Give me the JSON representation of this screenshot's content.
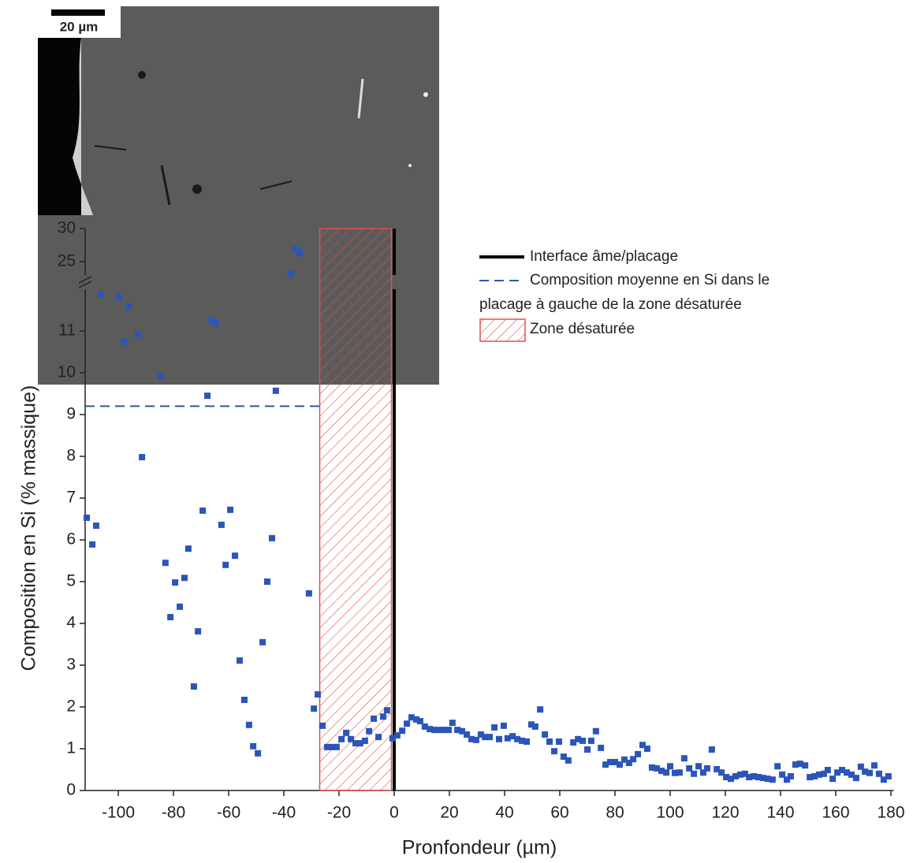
{
  "chart_data": {
    "type": "scatter",
    "x_label": "Pronfondeur (µm)",
    "y_label": "Composition en Si (% massique)",
    "xlim": [
      -112,
      181
    ],
    "xticks": [
      -100,
      -80,
      -60,
      -40,
      -20,
      0,
      20,
      40,
      60,
      80,
      100,
      120,
      140,
      160,
      180
    ],
    "ylim": [
      0,
      30
    ],
    "ybreak": [
      12,
      23
    ],
    "yticks": [
      0,
      1,
      2,
      3,
      4,
      5,
      6,
      7,
      8,
      9,
      10,
      11,
      25,
      30
    ],
    "image_scale_bar": "20 µm",
    "series": [
      {
        "color": "#2b55b8",
        "x": [
          -111.4,
          -109.4,
          -108,
          -106.3,
          -99.7,
          -96.3,
          -98,
          -92.9,
          -91.4,
          -84.6,
          -82.9,
          -81.1,
          -79.4,
          -77.7,
          -76,
          -74.6,
          -72.6,
          -71.1,
          -69.4,
          -67.7,
          -66.3,
          -64.6,
          -62.6,
          -61.1,
          -59.4,
          -57.7,
          -56,
          -54.3,
          -52.6,
          -51.1,
          -49.4,
          -47.7,
          -46,
          -44.3,
          -42.9,
          -37.4,
          -35.7,
          -34.3,
          -30.9,
          -29.1,
          -27.7,
          -26,
          -24.3,
          -22.6,
          -20.9,
          -19.1,
          -17.4,
          -15.7,
          -14,
          -12.3,
          -10.6,
          -9.1,
          -7.4,
          -5.7,
          -4,
          -2.6,
          -0.6,
          1.1,
          2.9,
          4.6,
          6.3,
          8,
          9.4,
          11.1,
          12.9,
          14.6,
          16.3,
          18,
          19.7,
          21.1,
          22.9,
          24.6,
          26.3,
          28,
          29.7,
          31.4,
          32.9,
          34.6,
          36.3,
          38,
          39.7,
          41.1,
          42.9,
          44.6,
          46.3,
          48,
          49.7,
          51.1,
          52.9,
          54.6,
          56.3,
          58,
          59.7,
          61.4,
          63.1,
          64.9,
          66.6,
          68.3,
          70,
          71.4,
          73.1,
          74.9,
          76.6,
          78.3,
          80,
          81.7,
          83.4,
          85.1,
          86.6,
          88.3,
          90,
          91.7,
          93.4,
          95.1,
          96.9,
          98.6,
          100,
          101.7,
          103.4,
          105.1,
          106.9,
          108.6,
          110.3,
          112,
          113.4,
          115.1,
          116.9,
          118.6,
          120.3,
          122,
          123.7,
          125.4,
          127.1,
          128.6,
          130.3,
          132,
          133.7,
          135.4,
          137.1,
          138.9,
          140.6,
          142.3,
          143.7,
          145.4,
          147.1,
          148.9,
          150.6,
          152.3,
          154,
          155.7,
          157.1,
          158.9,
          160.6,
          162.3,
          164,
          165.7,
          167.4,
          169.1,
          170.6,
          172.3,
          174,
          175.7,
          177.4,
          179.1
        ],
        "values": [
          6.53,
          5.89,
          6.34,
          11.87,
          11.81,
          11.58,
          10.74,
          10.91,
          7.98,
          9.91,
          5.45,
          4.15,
          4.98,
          4.4,
          5.09,
          5.79,
          2.49,
          3.81,
          6.7,
          9.45,
          11.26,
          11.19,
          6.36,
          5.4,
          6.72,
          5.62,
          3.11,
          2.17,
          1.57,
          1.06,
          0.89,
          3.55,
          5.0,
          6.04,
          9.57,
          23.2,
          26.9,
          26.3,
          4.72,
          1.96,
          2.3,
          1.55,
          1.04,
          1.04,
          1.04,
          1.23,
          1.38,
          1.23,
          1.13,
          1.13,
          1.19,
          1.42,
          1.72,
          1.28,
          1.77,
          1.92,
          1.25,
          1.32,
          1.43,
          1.6,
          1.75,
          1.7,
          1.66,
          1.53,
          1.47,
          1.45,
          1.45,
          1.45,
          1.45,
          1.62,
          1.45,
          1.42,
          1.34,
          1.23,
          1.21,
          1.34,
          1.28,
          1.28,
          1.51,
          1.23,
          1.55,
          1.25,
          1.3,
          1.23,
          1.19,
          1.17,
          1.58,
          1.53,
          1.94,
          1.34,
          1.17,
          0.94,
          1.17,
          0.81,
          0.72,
          1.15,
          1.23,
          1.19,
          0.98,
          1.19,
          1.42,
          1.02,
          0.62,
          0.68,
          0.68,
          0.62,
          0.74,
          0.66,
          0.75,
          0.87,
          1.09,
          1.0,
          0.55,
          0.53,
          0.47,
          0.43,
          0.58,
          0.42,
          0.43,
          0.77,
          0.53,
          0.4,
          0.58,
          0.43,
          0.53,
          0.98,
          0.51,
          0.43,
          0.32,
          0.28,
          0.34,
          0.38,
          0.4,
          0.32,
          0.34,
          0.32,
          0.3,
          0.28,
          0.26,
          0.58,
          0.38,
          0.26,
          0.34,
          0.62,
          0.64,
          0.6,
          0.32,
          0.34,
          0.38,
          0.4,
          0.49,
          0.28,
          0.43,
          0.49,
          0.43,
          0.38,
          0.3,
          0.57,
          0.45,
          0.42,
          0.6,
          0.4,
          0.26,
          0.34
        ]
      }
    ],
    "interface": {
      "name": "Interface âme/placage",
      "x": 0,
      "color": "#000000"
    },
    "mean_line": {
      "name": [
        "Composition moyenne en Si dans le",
        "placage à gauche de la zone désaturée"
      ],
      "y": 9.2,
      "xrange": [
        -112,
        -27
      ],
      "color": "#2b55b8"
    },
    "zone": {
      "name": "Zone désaturée",
      "xrange": [
        -27,
        -1
      ],
      "color": "#e05050"
    }
  }
}
